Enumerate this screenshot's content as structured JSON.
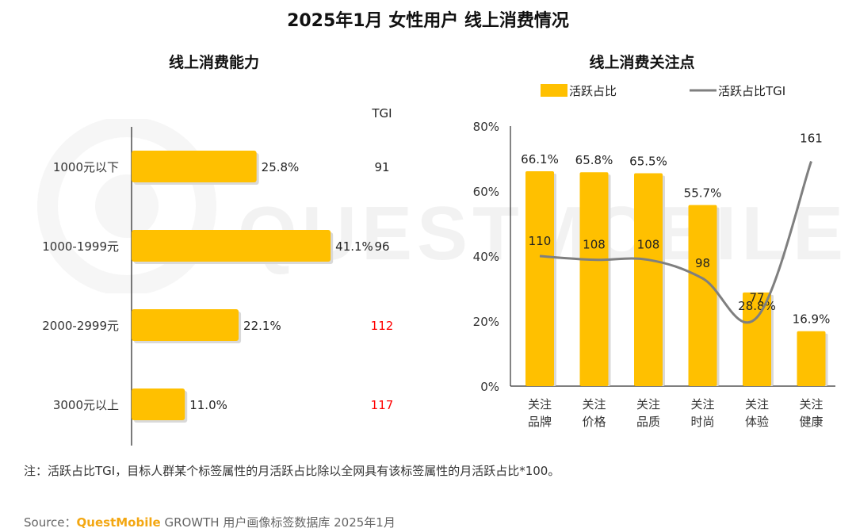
{
  "title": "2025年1月 女性用户 线上消费情况",
  "note": "注：活跃占比TGI，目标人群某个标签属性的月活跃占比除以全网具有该标签属性的月活跃占比*100。",
  "source": {
    "prefix": "Source：",
    "brand": "QuestMobile",
    "suffix": " GROWTH 用户画像标签数据库 2025年1月"
  },
  "watermark_text": "QUESTMOBILE",
  "colors": {
    "bar": "#ffc000",
    "bar_shadow": "#d9d9d9",
    "line": "#7f7f7f",
    "tgi_high": "#ff0000",
    "tgi_normal": "#222222",
    "brand": "#f3a712"
  },
  "chart_data": [
    {
      "type": "bar",
      "orientation": "horizontal",
      "title": "线上消费能力",
      "categories": [
        "1000元以下",
        "1000-1999元",
        "2000-2999元",
        "3000元以上"
      ],
      "values": [
        25.8,
        41.1,
        22.1,
        11.0
      ],
      "value_labels": [
        "25.8%",
        "41.1%",
        "22.1%",
        "11.0%"
      ],
      "tgi_header": "TGI",
      "tgi": [
        "91",
        "96",
        "112",
        "117"
      ],
      "tgi_highlight": [
        false,
        false,
        true,
        true
      ],
      "xlim": [
        0,
        45
      ]
    },
    {
      "type": "bar",
      "title": "线上消费关注点",
      "legend": {
        "bar_label": "活跃占比",
        "line_label": "活跃占比TGI",
        "placement": "top"
      },
      "categories": [
        [
          "关注",
          "品牌"
        ],
        [
          "关注",
          "价格"
        ],
        [
          "关注",
          "品质"
        ],
        [
          "关注",
          "时尚"
        ],
        [
          "关注",
          "体验"
        ],
        [
          "关注",
          "健康"
        ]
      ],
      "values": [
        66.1,
        65.8,
        65.5,
        55.7,
        28.8,
        16.9
      ],
      "value_labels": [
        "66.1%",
        "65.8%",
        "65.5%",
        "55.7%",
        "28.8%",
        "16.9%"
      ],
      "tgi": [
        110,
        108,
        108,
        98,
        77,
        161
      ],
      "tgi_labels": [
        "110",
        "108",
        "108",
        "98",
        "77",
        "161"
      ],
      "y_ticks": [
        "0%",
        "20%",
        "40%",
        "60%",
        "80%"
      ],
      "ylim": [
        0,
        80
      ],
      "tgi_range": [
        40,
        180
      ]
    }
  ]
}
